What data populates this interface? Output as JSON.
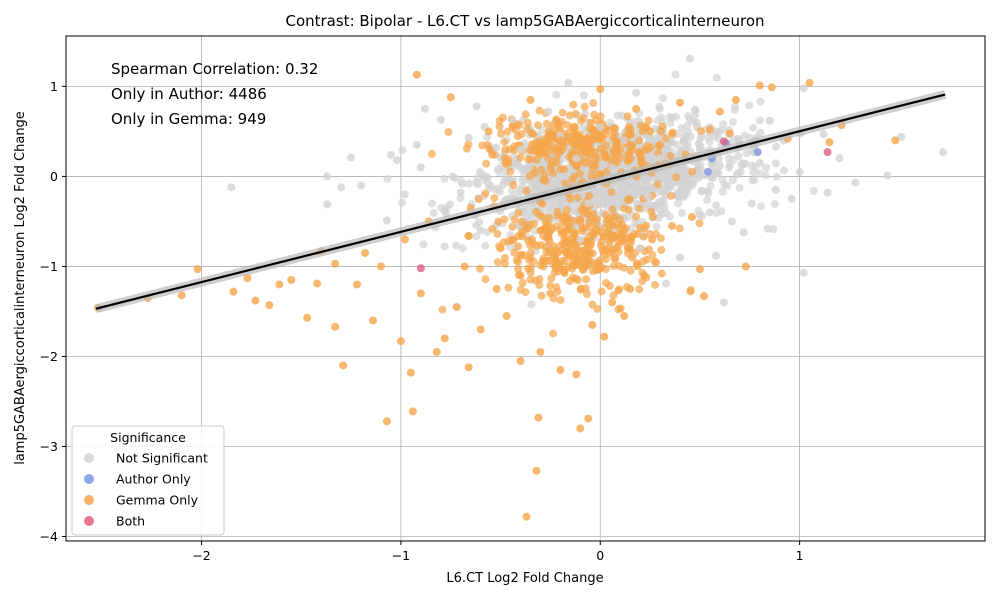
{
  "chart_data": {
    "type": "scatter",
    "title": "Contrast: Bipolar - L6.CT vs lamp5GABAergiccorticalinterneuron",
    "xlabel": "L6.CT Log2 Fold Change",
    "ylabel": "lamp5GABAergiccorticalinterneuron Log2 Fold Change",
    "xlim": [
      -2.68,
      1.93
    ],
    "ylim": [
      -4.05,
      1.56
    ],
    "xticks": [
      -2,
      -1,
      0,
      1
    ],
    "yticks": [
      -4,
      -3,
      -2,
      -1,
      0,
      1
    ],
    "grid": true,
    "legend_position": "bottom-left",
    "legend_title": "Significance",
    "annotations": [
      "Spearman Correlation: 0.32",
      "Only in Author: 4486",
      "Only in Gemma: 949"
    ],
    "trend_line": {
      "x": [
        -2.53,
        1.73
      ],
      "y": [
        -1.47,
        0.91
      ]
    },
    "series": [
      {
        "name": "Not Significant",
        "color": "#d3d3d3",
        "points": [
          [
            -1.85,
            -0.12
          ],
          [
            -1.37,
            0.0
          ],
          [
            -1.37,
            -0.31
          ],
          [
            -1.3,
            -0.12
          ],
          [
            -1.25,
            0.21
          ],
          [
            -1.2,
            -0.1
          ],
          [
            -1.07,
            -0.49
          ],
          [
            -1.05,
            0.24
          ],
          [
            -1.02,
            0.18
          ],
          [
            -0.98,
            -0.2
          ],
          [
            -0.92,
            0.35
          ],
          [
            -0.88,
            0.75
          ],
          [
            -0.8,
            0.63
          ],
          [
            -0.74,
            0.0
          ],
          [
            -0.7,
            -0.18
          ],
          [
            -0.66,
            0.43
          ],
          [
            -0.62,
            0.78
          ],
          [
            -0.58,
            0.55
          ],
          [
            -0.52,
            0.32
          ],
          [
            -0.48,
            -0.05
          ],
          [
            -0.44,
            0.62
          ],
          [
            -0.4,
            0.3
          ],
          [
            -0.36,
            0.1
          ],
          [
            -0.3,
            -0.15
          ],
          [
            -0.26,
            0.72
          ],
          [
            -0.2,
            0.45
          ],
          [
            -0.16,
            1.04
          ],
          [
            -0.12,
            0.2
          ],
          [
            -0.06,
            -0.3
          ],
          [
            0.0,
            0.55
          ],
          [
            0.06,
            0.1
          ],
          [
            0.12,
            0.4
          ],
          [
            0.18,
            0.93
          ],
          [
            0.24,
            -0.22
          ],
          [
            0.3,
            0.2
          ],
          [
            0.36,
            0.65
          ],
          [
            0.42,
            -0.1
          ],
          [
            0.45,
            1.31
          ],
          [
            0.5,
            0.3
          ],
          [
            0.55,
            -0.4
          ],
          [
            0.6,
            0.12
          ],
          [
            0.66,
            -0.5
          ],
          [
            0.7,
            0.35
          ],
          [
            0.76,
            -0.3
          ],
          [
            0.8,
            0.15
          ],
          [
            0.85,
            0.62
          ],
          [
            0.88,
            -0.15
          ],
          [
            0.92,
            0.4
          ],
          [
            0.96,
            -0.25
          ],
          [
            1.0,
            0.05
          ],
          [
            1.02,
            0.98
          ],
          [
            1.02,
            -1.07
          ],
          [
            1.12,
            0.47
          ],
          [
            1.14,
            -0.18
          ],
          [
            1.2,
            0.2
          ],
          [
            1.28,
            -0.07
          ],
          [
            1.44,
            0.01
          ],
          [
            1.51,
            0.44
          ],
          [
            1.72,
            0.27
          ],
          [
            -0.1,
            -0.7
          ],
          [
            0.2,
            -0.8
          ],
          [
            0.4,
            -0.9
          ],
          [
            0.62,
            -1.4
          ],
          [
            0.58,
            -0.88
          ],
          [
            0.33,
            -1.19
          ],
          [
            -0.6,
            -0.6
          ],
          [
            -0.78,
            -0.38
          ],
          [
            -0.9,
            0.1
          ],
          [
            0.72,
            -0.62
          ],
          [
            0.84,
            -0.58
          ]
        ]
      },
      {
        "name": "Author Only",
        "color": "#8096e0",
        "points": [
          [
            0.54,
            0.05
          ],
          [
            0.56,
            0.2
          ],
          [
            0.79,
            0.27
          ],
          [
            0.63,
            0.37
          ]
        ]
      },
      {
        "name": "Gemma Only",
        "color": "#f5a54a",
        "points": [
          [
            -2.52,
            -1.46
          ],
          [
            -2.27,
            -1.35
          ],
          [
            -2.1,
            -1.32
          ],
          [
            -2.02,
            -1.03
          ],
          [
            -1.84,
            -1.28
          ],
          [
            -1.77,
            -1.13
          ],
          [
            -1.73,
            -1.38
          ],
          [
            -1.66,
            -1.43
          ],
          [
            -1.61,
            -1.2
          ],
          [
            -1.55,
            -1.15
          ],
          [
            -1.47,
            -1.57
          ],
          [
            -1.42,
            -1.19
          ],
          [
            -1.4,
            -0.83
          ],
          [
            -1.33,
            -1.67
          ],
          [
            -1.33,
            -0.97
          ],
          [
            -1.29,
            -2.1
          ],
          [
            -1.22,
            -1.2
          ],
          [
            -1.18,
            -0.85
          ],
          [
            -1.14,
            -1.6
          ],
          [
            -1.1,
            -1.0
          ],
          [
            -1.07,
            -2.72
          ],
          [
            -1.0,
            -1.83
          ],
          [
            -0.98,
            -0.7
          ],
          [
            -0.95,
            -2.18
          ],
          [
            -0.94,
            -2.61
          ],
          [
            -0.92,
            1.13
          ],
          [
            -0.9,
            -1.3
          ],
          [
            -0.86,
            -0.5
          ],
          [
            -0.82,
            -1.95
          ],
          [
            -0.78,
            -1.8
          ],
          [
            -0.75,
            0.88
          ],
          [
            -0.72,
            -1.45
          ],
          [
            -0.68,
            -1.0
          ],
          [
            -0.66,
            -2.12
          ],
          [
            -0.6,
            -1.7
          ],
          [
            -0.56,
            0.5
          ],
          [
            -0.52,
            -1.25
          ],
          [
            -0.47,
            -1.55
          ],
          [
            -0.44,
            0.55
          ],
          [
            -0.4,
            -2.05
          ],
          [
            -0.37,
            -3.78
          ],
          [
            -0.35,
            0.85
          ],
          [
            -0.32,
            -3.27
          ],
          [
            -0.31,
            -2.68
          ],
          [
            -0.3,
            -1.95
          ],
          [
            -0.25,
            -1.3
          ],
          [
            -0.22,
            0.62
          ],
          [
            -0.2,
            -2.15
          ],
          [
            -0.18,
            -1.05
          ],
          [
            -0.12,
            -2.2
          ],
          [
            -0.1,
            -2.8
          ],
          [
            -0.06,
            -2.69
          ],
          [
            -0.04,
            -1.65
          ],
          [
            0.0,
            0.97
          ],
          [
            0.02,
            -1.78
          ],
          [
            0.06,
            -1.4
          ],
          [
            0.08,
            0.25
          ],
          [
            0.12,
            -1.55
          ],
          [
            0.16,
            -0.9
          ],
          [
            0.18,
            0.75
          ],
          [
            0.22,
            -1.1
          ],
          [
            0.26,
            -0.7
          ],
          [
            0.3,
            0.35
          ],
          [
            0.36,
            -0.55
          ],
          [
            0.4,
            0.82
          ],
          [
            0.46,
            -0.45
          ],
          [
            0.5,
            -1.03
          ],
          [
            0.52,
            -1.33
          ],
          [
            0.55,
            0.52
          ],
          [
            0.6,
            0.72
          ],
          [
            0.65,
            0.48
          ],
          [
            0.68,
            0.85
          ],
          [
            0.73,
            -1.0
          ],
          [
            0.8,
            1.01
          ],
          [
            0.86,
            0.99
          ],
          [
            0.94,
            0.42
          ],
          [
            1.05,
            1.04
          ],
          [
            1.15,
            0.38
          ],
          [
            1.21,
            0.57
          ],
          [
            1.48,
            0.4
          ],
          [
            -0.5,
            -0.8
          ],
          [
            -0.3,
            -0.6
          ],
          [
            -0.1,
            -0.5
          ],
          [
            0.1,
            0.3
          ],
          [
            0.25,
            0.5
          ],
          [
            -0.65,
            -0.35
          ],
          [
            -0.2,
            0.4
          ],
          [
            0.05,
            -0.85
          ],
          [
            -0.4,
            -1.1
          ],
          [
            0.15,
            -1.25
          ]
        ]
      },
      {
        "name": "Both",
        "color": "#e0607e",
        "points": [
          [
            -0.9,
            -1.02
          ],
          [
            0.62,
            0.39
          ],
          [
            1.14,
            0.27
          ]
        ]
      }
    ]
  }
}
